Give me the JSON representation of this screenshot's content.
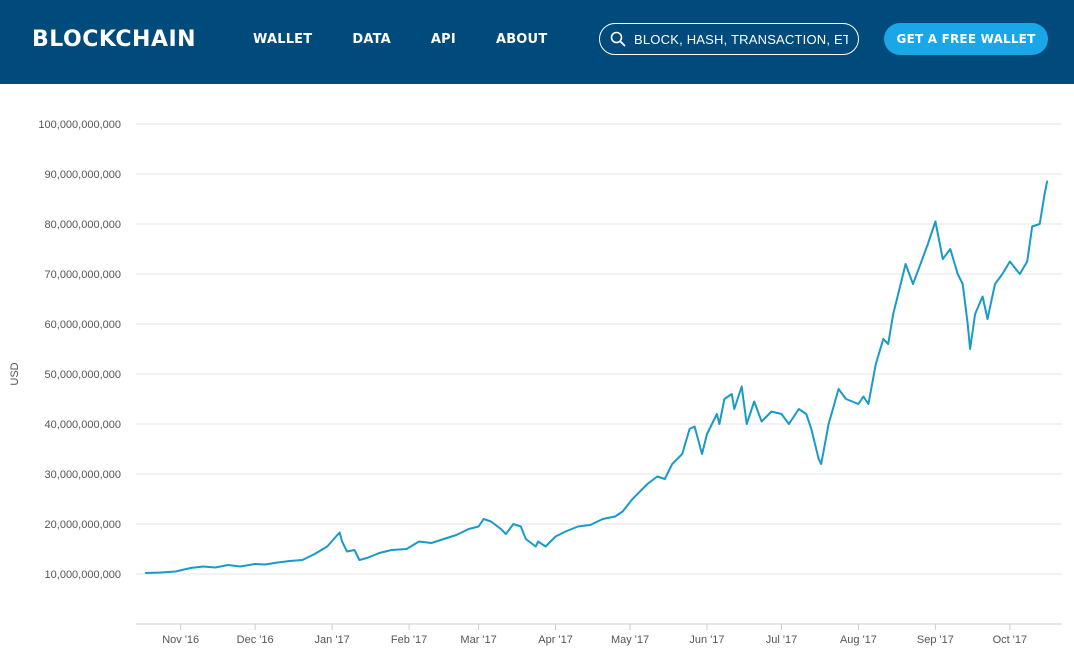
{
  "header": {
    "logo": "BLOCKCHAIN",
    "nav": [
      {
        "label": "WALLET"
      },
      {
        "label": "DATA"
      },
      {
        "label": "API"
      },
      {
        "label": "ABOUT"
      }
    ],
    "search": {
      "placeholder": "BLOCK, HASH, TRANSACTION, ETC..."
    },
    "cta_label": "GET A FREE WALLET"
  },
  "colors": {
    "header_bg": "#004a7c",
    "cta_bg": "#1aa7e8",
    "line": "#1a9ac9",
    "grid": "#e6e6e6"
  },
  "chart_data": {
    "type": "line",
    "title": "",
    "xlabel": "",
    "ylabel": "USD",
    "ylim": [
      0,
      100000000000
    ],
    "yticks": [
      10000000000,
      20000000000,
      30000000000,
      40000000000,
      50000000000,
      60000000000,
      70000000000,
      80000000000,
      90000000000,
      100000000000
    ],
    "ytick_labels": [
      "10,000,000,000",
      "20,000,000,000",
      "30,000,000,000",
      "40,000,000,000",
      "50,000,000,000",
      "60,000,000,000",
      "70,000,000,000",
      "80,000,000,000",
      "90,000,000,000",
      "100,000,000,000"
    ],
    "xlim": [
      "2016-10-14",
      "2017-10-22"
    ],
    "xticks": [
      "2016-11-01",
      "2016-12-01",
      "2017-01-01",
      "2017-02-01",
      "2017-03-01",
      "2017-04-01",
      "2017-05-01",
      "2017-06-01",
      "2017-07-01",
      "2017-08-01",
      "2017-09-01",
      "2017-10-01"
    ],
    "xtick_labels": [
      "Nov '16",
      "Dec '16",
      "Jan '17",
      "Feb '17",
      "Mar '17",
      "Apr '17",
      "May '17",
      "Jun '17",
      "Jul '17",
      "Aug '17",
      "Sep '17",
      "Oct '17"
    ],
    "grid": true,
    "legend": "none",
    "series": [
      {
        "x": [
          "2016-10-18",
          "2016-10-24",
          "2016-10-30",
          "2016-11-05",
          "2016-11-10",
          "2016-11-15",
          "2016-11-20",
          "2016-11-25",
          "2016-12-01",
          "2016-12-05",
          "2016-12-10",
          "2016-12-15",
          "2016-12-20",
          "2016-12-25",
          "2016-12-30",
          "2017-01-04",
          "2017-01-05",
          "2017-01-07",
          "2017-01-10",
          "2017-01-12",
          "2017-01-15",
          "2017-01-20",
          "2017-01-25",
          "2017-01-31",
          "2017-02-05",
          "2017-02-10",
          "2017-02-15",
          "2017-02-20",
          "2017-02-25",
          "2017-03-01",
          "2017-03-03",
          "2017-03-06",
          "2017-03-10",
          "2017-03-12",
          "2017-03-15",
          "2017-03-18",
          "2017-03-20",
          "2017-03-24",
          "2017-03-25",
          "2017-03-28",
          "2017-04-01",
          "2017-04-05",
          "2017-04-10",
          "2017-04-15",
          "2017-04-20",
          "2017-04-25",
          "2017-04-28",
          "2017-05-02",
          "2017-05-05",
          "2017-05-08",
          "2017-05-12",
          "2017-05-15",
          "2017-05-18",
          "2017-05-22",
          "2017-05-25",
          "2017-05-27",
          "2017-05-30",
          "2017-06-01",
          "2017-06-05",
          "2017-06-06",
          "2017-06-08",
          "2017-06-11",
          "2017-06-12",
          "2017-06-15",
          "2017-06-17",
          "2017-06-20",
          "2017-06-23",
          "2017-06-27",
          "2017-07-01",
          "2017-07-04",
          "2017-07-08",
          "2017-07-11",
          "2017-07-13",
          "2017-07-16",
          "2017-07-17",
          "2017-07-20",
          "2017-07-24",
          "2017-07-27",
          "2017-08-01",
          "2017-08-03",
          "2017-08-05",
          "2017-08-08",
          "2017-08-11",
          "2017-08-13",
          "2017-08-15",
          "2017-08-17",
          "2017-08-20",
          "2017-08-23",
          "2017-08-26",
          "2017-08-29",
          "2017-09-01",
          "2017-09-04",
          "2017-09-07",
          "2017-09-10",
          "2017-09-12",
          "2017-09-14",
          "2017-09-15",
          "2017-09-17",
          "2017-09-20",
          "2017-09-22",
          "2017-09-25",
          "2017-09-28",
          "2017-10-01",
          "2017-10-05",
          "2017-10-08",
          "2017-10-10",
          "2017-10-13",
          "2017-10-15",
          "2017-10-16"
        ],
        "values": [
          10200000000,
          10300000000,
          10500000000,
          11200000000,
          11500000000,
          11300000000,
          11800000000,
          11500000000,
          12000000000,
          11900000000,
          12300000000,
          12600000000,
          12800000000,
          14000000000,
          15500000000,
          18300000000,
          16500000000,
          14500000000,
          14800000000,
          12800000000,
          13200000000,
          14200000000,
          14800000000,
          15000000000,
          16500000000,
          16200000000,
          17000000000,
          17800000000,
          19000000000,
          19500000000,
          21000000000,
          20500000000,
          19000000000,
          18000000000,
          20000000000,
          19500000000,
          17000000000,
          15500000000,
          16500000000,
          15500000000,
          17500000000,
          18500000000,
          19500000000,
          19800000000,
          21000000000,
          21500000000,
          22500000000,
          25000000000,
          26500000000,
          28000000000,
          29500000000,
          29000000000,
          32000000000,
          34000000000,
          39000000000,
          39500000000,
          34000000000,
          38000000000,
          42000000000,
          40000000000,
          45000000000,
          46000000000,
          43000000000,
          47500000000,
          40000000000,
          44500000000,
          40500000000,
          42500000000,
          42000000000,
          40000000000,
          43000000000,
          42000000000,
          39000000000,
          33000000000,
          32000000000,
          40000000000,
          47000000000,
          45000000000,
          44000000000,
          45500000000,
          44000000000,
          52000000000,
          57000000000,
          56000000000,
          62000000000,
          66000000000,
          72000000000,
          68000000000,
          72000000000,
          76000000000,
          80500000000,
          73000000000,
          75000000000,
          70000000000,
          68000000000,
          60000000000,
          55000000000,
          62000000000,
          65500000000,
          61000000000,
          68000000000,
          70000000000,
          72500000000,
          70000000000,
          72500000000,
          79500000000,
          80000000000,
          86000000000,
          88500000000
        ]
      }
    ]
  }
}
